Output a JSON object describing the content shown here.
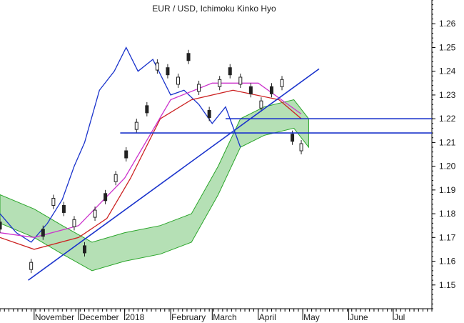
{
  "chart_data": {
    "type": "candlestick",
    "title": "EUR / USD, Ichimoku Kinko Hyo",
    "ylim": [
      1.14,
      1.27
    ],
    "y_ticks": [
      1.15,
      1.16,
      1.17,
      1.18,
      1.19,
      1.2,
      1.21,
      1.22,
      1.23,
      1.24,
      1.25,
      1.26
    ],
    "y_tick_labels": [
      "1.15",
      "1.16",
      "1.17",
      "1.18",
      "1.19",
      "1.20",
      "1.21",
      "1.22",
      "1.23",
      "1.24",
      "1.25",
      "1.26"
    ],
    "x_labels": [
      "November",
      "December",
      "2018",
      "February",
      "March",
      "April",
      "May",
      "June",
      "Jul"
    ],
    "x_range": [
      "2017-10-09",
      "2018-07-27"
    ],
    "x_label_dates": [
      "2017-11-01",
      "2017-12-01",
      "2018-01-01",
      "2018-02-01",
      "2018-03-01",
      "2018-04-01",
      "2018-05-01",
      "2018-06-01",
      "2018-07-01"
    ],
    "series": [
      {
        "type": "candles",
        "dates": [
          "2017-10-09",
          "2017-10-30",
          "2017-11-07",
          "2017-11-14",
          "2017-11-21",
          "2017-11-28",
          "2017-12-05",
          "2017-12-12",
          "2017-12-19",
          "2017-12-26",
          "2018-01-02",
          "2018-01-09",
          "2018-01-16",
          "2018-01-23",
          "2018-01-30",
          "2018-02-06",
          "2018-02-13",
          "2018-02-20",
          "2018-02-27",
          "2018-03-06",
          "2018-03-13",
          "2018-03-20",
          "2018-03-27",
          "2018-04-03",
          "2018-04-10",
          "2018-04-17",
          "2018-04-24",
          "2018-04-30"
        ],
        "values": [
          1.175,
          1.158,
          1.172,
          1.185,
          1.182,
          1.176,
          1.165,
          1.18,
          1.187,
          1.195,
          1.205,
          1.217,
          1.224,
          1.242,
          1.24,
          1.236,
          1.246,
          1.233,
          1.222,
          1.235,
          1.24,
          1.236,
          1.232,
          1.226,
          1.232,
          1.235,
          1.212,
          1.208
        ]
      },
      {
        "type": "line",
        "color": "#1a33cc",
        "dates": [
          "2017-10-09",
          "2017-10-20",
          "2017-10-30",
          "2017-11-10",
          "2017-11-20",
          "2017-11-28",
          "2017-12-05",
          "2017-12-15",
          "2017-12-25",
          "2018-01-02",
          "2018-01-10",
          "2018-01-20",
          "2018-02-01",
          "2018-02-10",
          "2018-02-20",
          "2018-03-01",
          "2018-03-10",
          "2018-03-20"
        ],
        "values": [
          1.18,
          1.172,
          1.168,
          1.176,
          1.186,
          1.2,
          1.21,
          1.232,
          1.24,
          1.25,
          1.24,
          1.245,
          1.23,
          1.232,
          1.226,
          1.218,
          1.225,
          1.208
        ]
      },
      {
        "type": "line",
        "color": "#cc2222",
        "dates": [
          "2017-10-09",
          "2017-11-01",
          "2017-12-01",
          "2017-12-20",
          "2018-01-05",
          "2018-01-25",
          "2018-02-15",
          "2018-03-15",
          "2018-04-15",
          "2018-04-30"
        ],
        "values": [
          1.17,
          1.165,
          1.17,
          1.178,
          1.195,
          1.22,
          1.228,
          1.232,
          1.228,
          1.22
        ]
      },
      {
        "type": "line",
        "color": "#cc33cc",
        "dates": [
          "2017-10-09",
          "2017-11-01",
          "2017-12-01",
          "2018-01-01",
          "2018-02-01",
          "2018-03-01",
          "2018-04-01",
          "2018-04-30"
        ],
        "values": [
          1.172,
          1.17,
          1.175,
          1.195,
          1.228,
          1.235,
          1.235,
          1.222
        ]
      },
      {
        "type": "area",
        "fill": "#2aa52a",
        "dates": [
          "2017-10-09",
          "2017-11-01",
          "2017-11-20",
          "2017-12-10",
          "2018-01-01",
          "2018-01-25",
          "2018-02-15",
          "2018-03-05",
          "2018-03-20",
          "2018-04-05",
          "2018-04-25",
          "2018-05-05"
        ],
        "values": [
          1.188,
          1.182,
          1.175,
          1.168,
          1.172,
          1.175,
          1.18,
          1.2,
          1.22,
          1.225,
          1.228,
          1.22
        ]
      }
    ],
    "trendlines": [
      {
        "name": "uptrend",
        "color": "#1a33cc",
        "x": [
          "2017-10-28",
          "2018-05-12"
        ],
        "y": [
          1.152,
          1.241
        ]
      },
      {
        "name": "support",
        "color": "#1a33cc",
        "x": [
          "2017-12-29",
          "2018-07-27"
        ],
        "y": [
          1.214,
          1.214
        ]
      },
      {
        "name": "resistance",
        "color": "#1a33cc",
        "x": [
          "2018-03-10",
          "2018-07-27"
        ],
        "y": [
          1.22,
          1.22
        ]
      }
    ],
    "legend": "none"
  }
}
